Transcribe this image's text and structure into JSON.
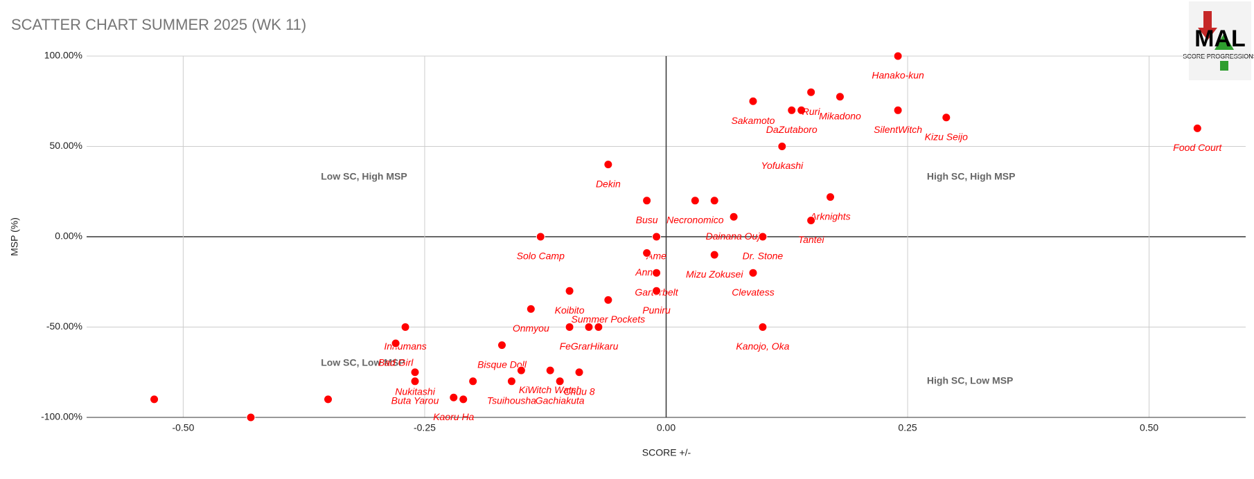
{
  "chart_data": {
    "type": "scatter",
    "title": "SCATTER CHART SUMMER 2025 (WK 11)",
    "x_label": "SCORE +/-",
    "y_label": "MSP (%)",
    "color": "#ff0000",
    "grid": true,
    "xlim": [
      -0.6,
      0.6
    ],
    "ylim": [
      -100,
      100
    ],
    "xticks": [
      {
        "value": -0.5,
        "label": "-0.50"
      },
      {
        "value": -0.25,
        "label": "-0.25"
      },
      {
        "value": 0,
        "label": "0.00"
      },
      {
        "value": 0.25,
        "label": "0.25"
      },
      {
        "value": 0.5,
        "label": "0.50"
      }
    ],
    "yticks": [
      {
        "value": 100,
        "label": "100.00%"
      },
      {
        "value": 50,
        "label": "50.00%"
      },
      {
        "value": 0,
        "label": "0.00%"
      },
      {
        "value": -50,
        "label": "-50.00%"
      },
      {
        "value": -100,
        "label": "-100.00%"
      }
    ],
    "annotations": [
      "Low SC, High MSP",
      "High SC, High MSP",
      "Low SC, Low MSP",
      "High SC, Low MSP"
    ],
    "logo": [
      "MAL",
      "SCORE PROGRESSIONS"
    ],
    "labels": [
      "Hanako-kun",
      "Sakamoto",
      "DaZutaboro",
      null,
      "Ruri",
      "Mikadono",
      "SilentWitch",
      "Kizu Seijo",
      "Food Court",
      "Yofukashi",
      "Dekin",
      "Busu",
      "Necronomico",
      null,
      "Arknights",
      "Dainana Ouji",
      "Tantei",
      "Dr. Stone",
      "Solo Camp",
      "Ame",
      "Anne",
      "Mizu Zokusei",
      "Clevatess",
      "Garterbelt",
      "Puniru",
      "Koibito",
      "Summer Pockets",
      "Onmyou",
      "Kanojo, Oka",
      "FeGrarHikaru",
      null,
      null,
      "Inhumans",
      "Bad Girl",
      "Bisque Doll",
      "Nukitashi",
      "Buta Yarou",
      "KiWitch Watch",
      null,
      "Chuu 8",
      "Tsuihousha",
      "Gachiakuta",
      null,
      "Kaoru Ha",
      null,
      null,
      null,
      null
    ],
    "x": [
      0.24,
      0.09,
      0.13,
      0.14,
      0.15,
      0.18,
      0.24,
      0.29,
      0.55,
      0.12,
      -0.06,
      -0.02,
      0.03,
      0.05,
      0.17,
      0.07,
      0.15,
      0.1,
      -0.13,
      -0.01,
      -0.02,
      0.05,
      0.09,
      -0.01,
      -0.01,
      -0.1,
      -0.06,
      -0.14,
      0.1,
      -0.08,
      -0.1,
      -0.07,
      -0.27,
      -0.28,
      -0.17,
      -0.26,
      -0.26,
      -0.12,
      -0.15,
      -0.09,
      -0.16,
      -0.11,
      -0.2,
      -0.22,
      -0.21,
      -0.35,
      -0.43,
      -0.53
    ],
    "values": [
      100,
      75,
      70,
      70,
      80,
      77.5,
      70,
      66,
      60,
      50,
      40,
      20,
      20,
      20,
      22,
      11,
      9,
      0,
      0,
      0,
      -9,
      -10,
      -20,
      -20,
      -30,
      -30,
      -35,
      -40,
      -50,
      -50,
      -50,
      -50,
      -50,
      -59,
      -60,
      -75,
      -80,
      -74,
      -74,
      -75,
      -80,
      -80,
      -80,
      -89,
      -90,
      -90,
      -100,
      -90
    ]
  }
}
